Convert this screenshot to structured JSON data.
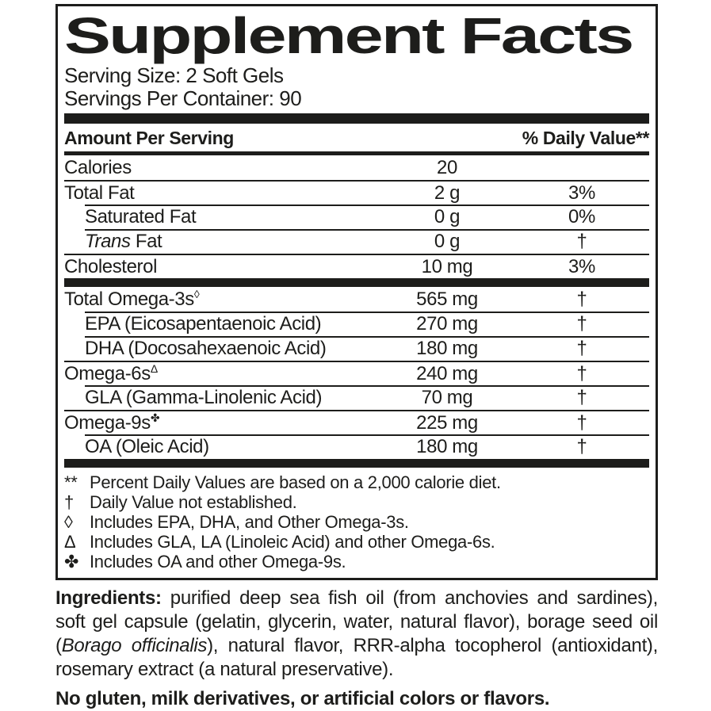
{
  "colors": {
    "text": "#1d1d1b",
    "background": "#ffffff",
    "rule": "#1d1d1b"
  },
  "label": {
    "title": "Supplement Facts",
    "serving_size": "Serving Size: 2 Soft Gels",
    "servings_per_container": "Servings Per Container: 90",
    "header": {
      "amount": "Amount Per Serving",
      "daily_value": "% Daily Value**"
    },
    "rows": [
      {
        "parts": [
          {
            "text": "Calories"
          }
        ],
        "amount": "20",
        "dv": "",
        "sep": "none",
        "indent": false
      },
      {
        "parts": [
          {
            "text": "Total Fat"
          }
        ],
        "amount": "2 g",
        "dv": "3%",
        "sep": "full",
        "indent": false
      },
      {
        "parts": [
          {
            "text": "Saturated Fat"
          }
        ],
        "amount": "0 g",
        "dv": "0%",
        "sep": "indent",
        "indent": true
      },
      {
        "parts": [
          {
            "text": "Trans",
            "italic": true
          },
          {
            "text": " Fat"
          }
        ],
        "amount": "0 g",
        "dv": "†",
        "sep": "indent",
        "indent": true
      },
      {
        "parts": [
          {
            "text": "Cholesterol"
          }
        ],
        "amount": "10 mg",
        "dv": "3%",
        "sep": "full",
        "indent": false,
        "thick_after": true
      },
      {
        "parts": [
          {
            "text": "Total Omega-3s"
          },
          {
            "text": "◊",
            "sup": true
          }
        ],
        "amount": "565 mg",
        "dv": "†",
        "sep": "none",
        "indent": false
      },
      {
        "parts": [
          {
            "text": "EPA (Eicosapentaenoic Acid)"
          }
        ],
        "amount": "270 mg",
        "dv": "†",
        "sep": "indent",
        "indent": true
      },
      {
        "parts": [
          {
            "text": "DHA (Docosahexaenoic Acid)"
          }
        ],
        "amount": "180 mg",
        "dv": "†",
        "sep": "indent",
        "indent": true
      },
      {
        "parts": [
          {
            "text": "Omega-6s"
          },
          {
            "text": "Δ",
            "sup": true
          }
        ],
        "amount": "240 mg",
        "dv": "†",
        "sep": "full",
        "indent": false
      },
      {
        "parts": [
          {
            "text": "GLA (Gamma-Linolenic Acid)"
          }
        ],
        "amount": "70 mg",
        "dv": "†",
        "sep": "indent",
        "indent": true
      },
      {
        "parts": [
          {
            "text": "Omega-9s"
          },
          {
            "text": "✤",
            "sup": true
          }
        ],
        "amount": "225 mg",
        "dv": "†",
        "sep": "full",
        "indent": false
      },
      {
        "parts": [
          {
            "text": "OA (Oleic Acid)"
          }
        ],
        "amount": "180 mg",
        "dv": "†",
        "sep": "indent",
        "indent": true,
        "thick_after": true
      }
    ],
    "footnotes": [
      {
        "symbol": "**",
        "text": "Percent Daily Values are based on a 2,000 calorie diet."
      },
      {
        "symbol": "†",
        "text": "Daily Value not established."
      },
      {
        "symbol": "◊",
        "text": "Includes EPA, DHA, and Other Omega-3s."
      },
      {
        "symbol": "Δ",
        "text": "Includes GLA, LA (Linoleic Acid) and other Omega-6s."
      },
      {
        "symbol": "✤",
        "text": "Includes OA and other Omega-9s."
      }
    ]
  },
  "ingredients": {
    "segments": [
      {
        "text": "Ingredients:",
        "bold": true
      },
      {
        "text": " purified deep sea fish oil (from anchovies and sardines), soft gel capsule (gelatin, glycerin, water, natural flavor), borage seed oil ("
      },
      {
        "text": "Borago officinalis",
        "italic": true
      },
      {
        "text": "), natural flavor, RRR-alpha tocopherol (antioxidant), rosemary extract (a natural preservative)."
      }
    ]
  },
  "claim": "No gluten, milk derivatives, or artificial colors or flavors."
}
